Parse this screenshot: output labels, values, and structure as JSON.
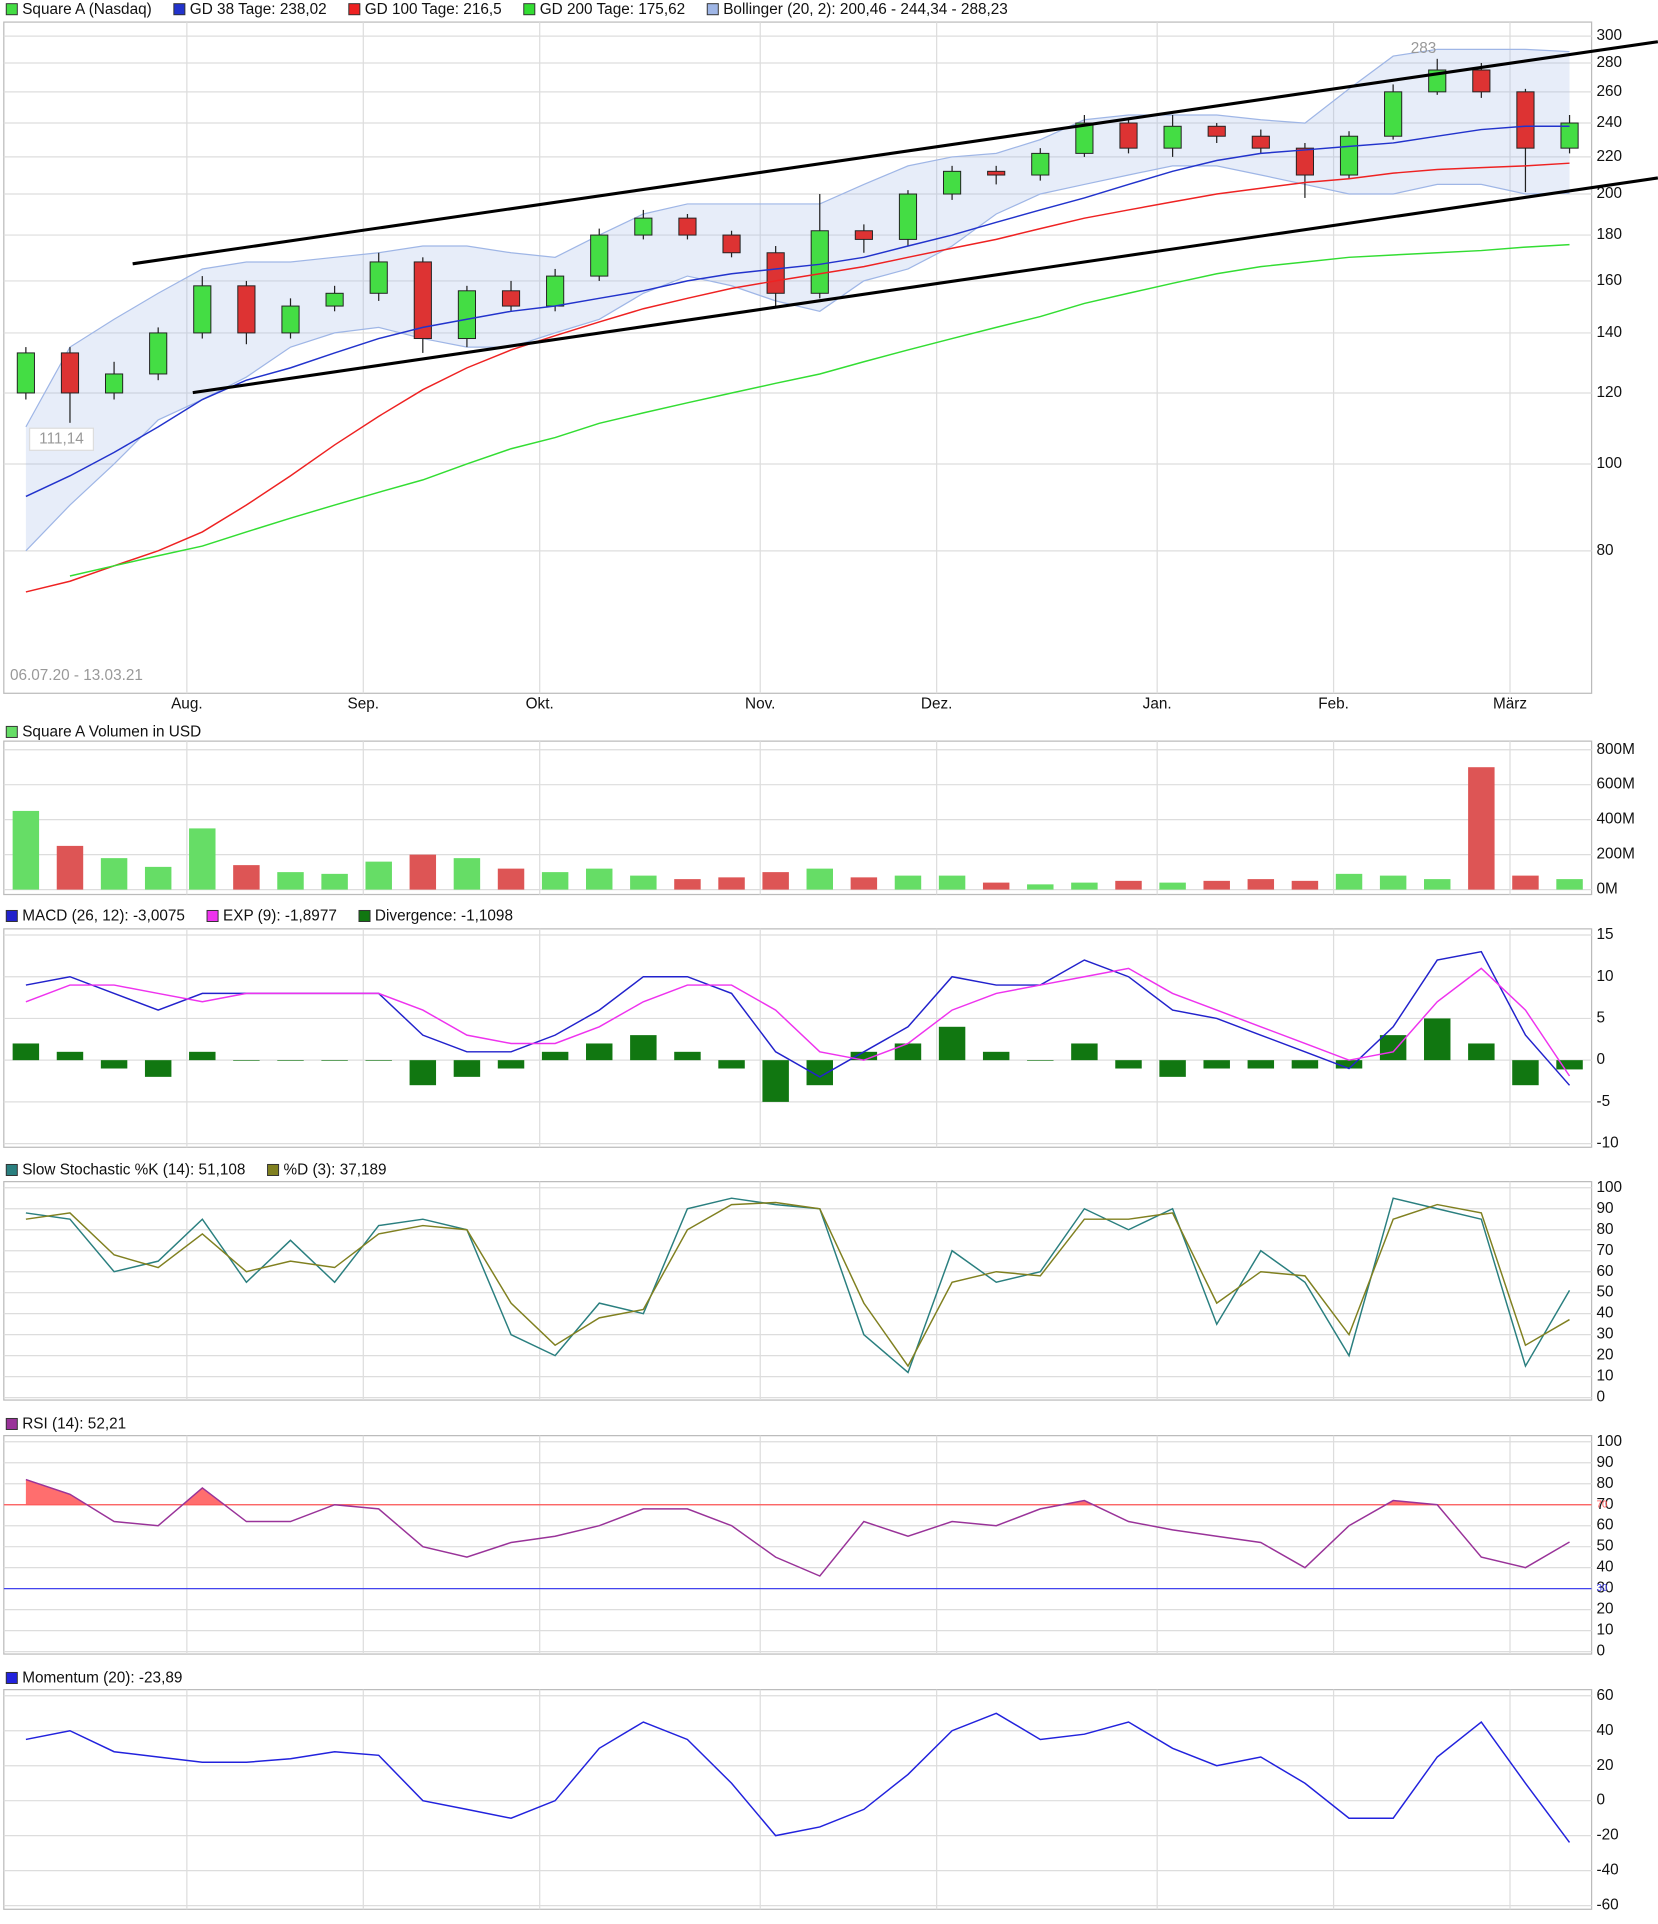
{
  "chart_data": [
    {
      "type": "candlestick",
      "categories": [
        null,
        null,
        null,
        null,
        "Aug.",
        null,
        null,
        null,
        "Sep.",
        null,
        null,
        null,
        "Okt.",
        null,
        null,
        null,
        null,
        "Nov.",
        null,
        null,
        null,
        "Dez.",
        null,
        null,
        null,
        null,
        "Jan.",
        null,
        null,
        null,
        "Feb.",
        null,
        null,
        null,
        "März",
        null
      ],
      "name": "Square A (Nasdaq)",
      "up_color": "#44dd44",
      "down_color": "#dd3333",
      "open": [
        120,
        133,
        120,
        126,
        140,
        158,
        140,
        150,
        155,
        168,
        138,
        156,
        150,
        162,
        180,
        188,
        180,
        172,
        155,
        182,
        178,
        200,
        212,
        210,
        222,
        240,
        225,
        238,
        232,
        225,
        210,
        232,
        260,
        275,
        260,
        225
      ],
      "high": [
        135,
        135,
        130,
        142,
        162,
        160,
        153,
        158,
        172,
        170,
        158,
        160,
        165,
        183,
        192,
        190,
        182,
        175,
        200,
        185,
        202,
        215,
        215,
        225,
        245,
        242,
        245,
        240,
        236,
        228,
        235,
        265,
        283,
        280,
        262,
        245
      ],
      "low": [
        118,
        111.14,
        118,
        124,
        138,
        136,
        138,
        148,
        152,
        133,
        135,
        148,
        148,
        160,
        178,
        178,
        170,
        150,
        153,
        172,
        175,
        197,
        205,
        207,
        220,
        222,
        220,
        228,
        222,
        198,
        208,
        230,
        258,
        256,
        201,
        222
      ],
      "close": [
        133,
        120,
        126,
        140,
        158,
        140,
        150,
        155,
        168,
        138,
        156,
        150,
        162,
        180,
        188,
        180,
        172,
        155,
        182,
        178,
        200,
        212,
        210,
        222,
        240,
        225,
        238,
        232,
        225,
        210,
        232,
        260,
        275,
        260,
        225,
        240
      ],
      "series": [
        {
          "name": "GD 38 Tage: 238,02",
          "kind": "line",
          "color": "#2233cc",
          "values": [
            92,
            97,
            103,
            110,
            118,
            124,
            128,
            133,
            138,
            142,
            145,
            148,
            150,
            153,
            156,
            160,
            163,
            165,
            167,
            170,
            175,
            180,
            186,
            192,
            198,
            205,
            212,
            218,
            222,
            224,
            226,
            228,
            232,
            236,
            238,
            238.02
          ]
        },
        {
          "name": "GD 100 Tage: 216,5",
          "kind": "line",
          "color": "#ee2222",
          "values": [
            72,
            74,
            77,
            80,
            84,
            90,
            97,
            105,
            113,
            121,
            128,
            134,
            139,
            144,
            149,
            153,
            157,
            160,
            163,
            166,
            170,
            174,
            178,
            183,
            188,
            192,
            196,
            200,
            203,
            206,
            208,
            211,
            213,
            214,
            215,
            216.5
          ]
        },
        {
          "name": "GD 200 Tage: 175,62",
          "kind": "line",
          "color": "#33dd33",
          "values": [
            null,
            75,
            77,
            79,
            81,
            84,
            87,
            90,
            93,
            96,
            100,
            104,
            107,
            111,
            114,
            117,
            120,
            123,
            126,
            130,
            134,
            138,
            142,
            146,
            151,
            155,
            159,
            163,
            166,
            168,
            170,
            171,
            172,
            173,
            174.5,
            175.62
          ]
        },
        {
          "name": "Bollinger (20, 2): 200,46 - 244,34 - 288,23",
          "kind": "band",
          "color": "#9fb6e6",
          "upper": [
            110,
            135,
            145,
            155,
            165,
            168,
            168,
            170,
            172,
            175,
            175,
            172,
            170,
            180,
            190,
            195,
            195,
            195,
            195,
            205,
            215,
            220,
            222,
            230,
            242,
            245,
            245,
            245,
            242,
            240,
            262,
            285,
            290,
            290,
            290,
            288.23
          ],
          "lower": [
            80,
            90,
            100,
            112,
            118,
            125,
            135,
            140,
            142,
            138,
            135,
            135,
            140,
            145,
            155,
            162,
            158,
            152,
            148,
            160,
            165,
            175,
            190,
            200,
            205,
            210,
            215,
            215,
            210,
            205,
            200,
            200,
            205,
            205,
            200,
            200.46
          ]
        }
      ],
      "log_scale": true,
      "ylim": [
        55.5,
        311
      ],
      "yticks": [
        80,
        100,
        120,
        140,
        160,
        180,
        200,
        220,
        240,
        260,
        280,
        300
      ],
      "grid": true,
      "annotations": [
        283,
        "111,14",
        "06.07.20 - 13.03.21"
      ]
    },
    {
      "type": "bar",
      "series": [
        {
          "name": "Square A Volumen in USD",
          "kind": "bar",
          "color": "#66dd66",
          "colors": [
            "#66dd66",
            "#dd5555",
            "#66dd66",
            "#66dd66",
            "#66dd66",
            "#dd5555",
            "#66dd66",
            "#66dd66",
            "#66dd66",
            "#dd5555",
            "#66dd66",
            "#dd5555",
            "#66dd66",
            "#66dd66",
            "#66dd66",
            "#dd5555",
            "#dd5555",
            "#dd5555",
            "#66dd66",
            "#dd5555",
            "#66dd66",
            "#66dd66",
            "#dd5555",
            "#66dd66",
            "#66dd66",
            "#dd5555",
            "#66dd66",
            "#dd5555",
            "#dd5555",
            "#dd5555",
            "#66dd66",
            "#66dd66",
            "#66dd66",
            "#dd5555",
            "#dd5555",
            "#66dd66"
          ],
          "values": [
            450,
            250,
            180,
            130,
            350,
            140,
            100,
            90,
            160,
            200,
            180,
            120,
            100,
            120,
            80,
            60,
            70,
            100,
            120,
            70,
            80,
            80,
            40,
            30,
            40,
            50,
            40,
            50,
            60,
            50,
            90,
            80,
            60,
            700,
            80,
            60
          ]
        }
      ],
      "ylim": [
        0,
        800
      ],
      "yticks": [
        {
          "value": 0,
          "label": "0M"
        },
        {
          "value": 200,
          "label": "200M"
        },
        {
          "value": 400,
          "label": "400M"
        },
        {
          "value": 600,
          "label": "600M"
        },
        {
          "value": 800,
          "label": "800M"
        }
      ],
      "grid": true
    },
    {
      "type": "line",
      "series": [
        {
          "name": "MACD (26, 12): -3,0075",
          "kind": "line",
          "color": "#2222cc",
          "values": [
            9,
            10,
            8,
            6,
            8,
            8,
            8,
            8,
            8,
            3,
            1,
            1,
            3,
            6,
            10,
            10,
            8,
            1,
            -2,
            1,
            4,
            10,
            9,
            9,
            12,
            10,
            6,
            5,
            3,
            1,
            -1,
            4,
            12,
            13,
            3,
            -3.0075
          ]
        },
        {
          "name": "EXP (9): -1,8977",
          "kind": "line",
          "color": "#ee33ee",
          "values": [
            7,
            9,
            9,
            8,
            7,
            8,
            8,
            8,
            8,
            6,
            3,
            2,
            2,
            4,
            7,
            9,
            9,
            6,
            1,
            0,
            2,
            6,
            8,
            9,
            10,
            11,
            8,
            6,
            4,
            2,
            0,
            1,
            7,
            11,
            6,
            -1.8977
          ]
        },
        {
          "name": "Divergence: -1,1098",
          "kind": "bar",
          "color": "#117711",
          "values": [
            2,
            1,
            -1,
            -2,
            1,
            0,
            0,
            0,
            0,
            -3,
            -2,
            -1,
            1,
            2,
            3,
            1,
            -1,
            -5,
            -3,
            1,
            2,
            4,
            1,
            0,
            2,
            -1,
            -2,
            -1,
            -1,
            -1,
            -1,
            3,
            5,
            2,
            -3,
            -1.1098
          ]
        }
      ],
      "ylim": [
        -10,
        15
      ],
      "yticks": [
        -10,
        -5,
        0,
        5,
        10,
        15
      ],
      "grid": true
    },
    {
      "type": "line",
      "series": [
        {
          "name": "Slow Stochastic %K (14): 51,108",
          "kind": "line",
          "color": "#2a7f7f",
          "values": [
            88,
            85,
            60,
            65,
            85,
            55,
            75,
            55,
            82,
            85,
            80,
            30,
            20,
            45,
            40,
            90,
            95,
            92,
            90,
            30,
            12,
            70,
            55,
            60,
            90,
            80,
            90,
            35,
            70,
            55,
            20,
            95,
            90,
            85,
            15,
            51.108
          ]
        },
        {
          "name": "%D (3): 37,189",
          "kind": "line",
          "color": "#808020",
          "values": [
            85,
            88,
            68,
            62,
            78,
            60,
            65,
            62,
            78,
            82,
            80,
            45,
            25,
            38,
            42,
            80,
            92,
            93,
            90,
            45,
            15,
            55,
            60,
            58,
            85,
            85,
            88,
            45,
            60,
            58,
            30,
            85,
            92,
            88,
            25,
            37.189
          ]
        }
      ],
      "ylim": [
        0,
        100
      ],
      "yticks": [
        0,
        10,
        20,
        30,
        40,
        50,
        60,
        70,
        80,
        90,
        100
      ],
      "grid": true
    },
    {
      "type": "line",
      "series": [
        {
          "name": "RSI (14): 52,21",
          "kind": "line",
          "color": "#993399",
          "values": [
            82,
            75,
            62,
            60,
            78,
            62,
            62,
            70,
            68,
            50,
            45,
            52,
            55,
            60,
            68,
            68,
            60,
            45,
            36,
            62,
            55,
            62,
            60,
            68,
            72,
            62,
            58,
            55,
            52,
            40,
            60,
            72,
            70,
            45,
            40,
            52.21
          ]
        }
      ],
      "ref_lines": [
        {
          "value": 70,
          "color": "#ff5555",
          "fill": true
        },
        {
          "value": 30,
          "color": "#4444ee",
          "fill": false
        }
      ],
      "ylim": [
        0,
        100
      ],
      "yticks": [
        0,
        10,
        20,
        30,
        40,
        50,
        60,
        70,
        80,
        90,
        100
      ],
      "grid": true
    },
    {
      "type": "line",
      "series": [
        {
          "name": "Momentum (20): -23,89",
          "kind": "line",
          "color": "#2222dd",
          "values": [
            35,
            40,
            28,
            25,
            22,
            22,
            24,
            28,
            26,
            0,
            -5,
            -10,
            0,
            30,
            45,
            35,
            10,
            -20,
            -15,
            -5,
            15,
            40,
            50,
            35,
            38,
            45,
            30,
            20,
            25,
            10,
            -10,
            -10,
            25,
            45,
            10,
            -23.89
          ]
        }
      ],
      "ylim": [
        -60,
        60
      ],
      "yticks": [
        -60,
        -40,
        -20,
        0,
        20,
        40,
        60
      ],
      "grid": true
    }
  ]
}
